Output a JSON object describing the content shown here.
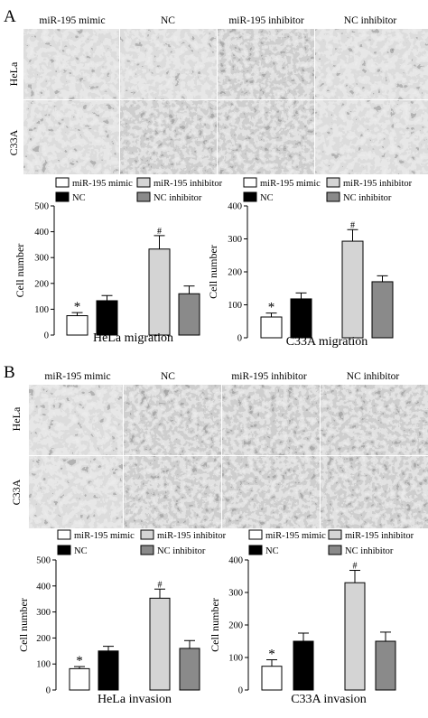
{
  "figure": {
    "panel_A": {
      "label": "A",
      "columns": [
        "miR-195 mimic",
        "NC",
        "miR-195 inhibitor",
        "NC inhibitor"
      ],
      "rows": [
        "HeLa",
        "C33A"
      ],
      "legend": [
        {
          "label": "miR-195 mimic",
          "color": "#ffffff"
        },
        {
          "label": "miR-195 inhibitor",
          "color": "#d4d4d4"
        },
        {
          "label": "NC",
          "color": "#000000"
        },
        {
          "label": "NC inhibitor",
          "color": "#8a8a8a"
        }
      ]
    },
    "panel_B": {
      "label": "B",
      "columns": [
        "miR-195 mimic",
        "NC",
        "miR-195 inhibitor",
        "NC inhibitor"
      ],
      "rows": [
        "HeLa",
        "C33A"
      ],
      "legend": [
        {
          "label": "miR-195 mimic",
          "color": "#ffffff"
        },
        {
          "label": "miR-195 inhibitor",
          "color": "#d4d4d4"
        },
        {
          "label": "NC",
          "color": "#000000"
        },
        {
          "label": "NC inhibitor",
          "color": "#8a8a8a"
        }
      ]
    }
  },
  "chart_data": [
    {
      "type": "bar",
      "title": "HeLa migration",
      "xlabel": "HeLa migration",
      "ylabel": "Cell number",
      "ylim": [
        0,
        500
      ],
      "yticks": [
        0,
        100,
        200,
        300,
        400,
        500
      ],
      "categories": [
        "miR-195 mimic",
        "NC",
        "miR-195 inhibitor",
        "NC inhibitor"
      ],
      "values": [
        75,
        133,
        333,
        160
      ],
      "errors": [
        12,
        20,
        52,
        30
      ],
      "colors": [
        "#ffffff",
        "#000000",
        "#d4d4d4",
        "#8a8a8a"
      ],
      "annotations": [
        "*",
        "",
        "#",
        ""
      ]
    },
    {
      "type": "bar",
      "title": "C33A migration",
      "xlabel": "C33A migration",
      "ylabel": "Cell number",
      "ylim": [
        0,
        400
      ],
      "yticks": [
        0,
        100,
        200,
        300,
        400
      ],
      "categories": [
        "miR-195 mimic",
        "NC",
        "miR-195 inhibitor",
        "NC inhibitor"
      ],
      "values": [
        63,
        118,
        293,
        170
      ],
      "errors": [
        12,
        18,
        35,
        18
      ],
      "colors": [
        "#ffffff",
        "#000000",
        "#d4d4d4",
        "#8a8a8a"
      ],
      "annotations": [
        "*",
        "",
        "#",
        ""
      ]
    },
    {
      "type": "bar",
      "title": "HeLa invasion",
      "xlabel": "HeLa invasion",
      "ylabel": "Cell number",
      "ylim": [
        0,
        500
      ],
      "yticks": [
        0,
        100,
        200,
        300,
        400,
        500
      ],
      "categories": [
        "miR-195 mimic",
        "NC",
        "miR-195 inhibitor",
        "NC inhibitor"
      ],
      "values": [
        82,
        150,
        353,
        160
      ],
      "errors": [
        8,
        18,
        35,
        30
      ],
      "colors": [
        "#ffffff",
        "#000000",
        "#d4d4d4",
        "#8a8a8a"
      ],
      "annotations": [
        "*",
        "",
        "#",
        ""
      ]
    },
    {
      "type": "bar",
      "title": "C33A invasion",
      "xlabel": "C33A invasion",
      "ylabel": "Cell number",
      "ylim": [
        0,
        400
      ],
      "yticks": [
        0,
        100,
        200,
        300,
        400
      ],
      "categories": [
        "miR-195 mimic",
        "NC",
        "miR-195 inhibitor",
        "NC inhibitor"
      ],
      "values": [
        73,
        150,
        330,
        150
      ],
      "errors": [
        20,
        25,
        38,
        28
      ],
      "colors": [
        "#ffffff",
        "#000000",
        "#d4d4d4",
        "#8a8a8a"
      ],
      "annotations": [
        "*",
        "",
        "#",
        ""
      ]
    }
  ]
}
